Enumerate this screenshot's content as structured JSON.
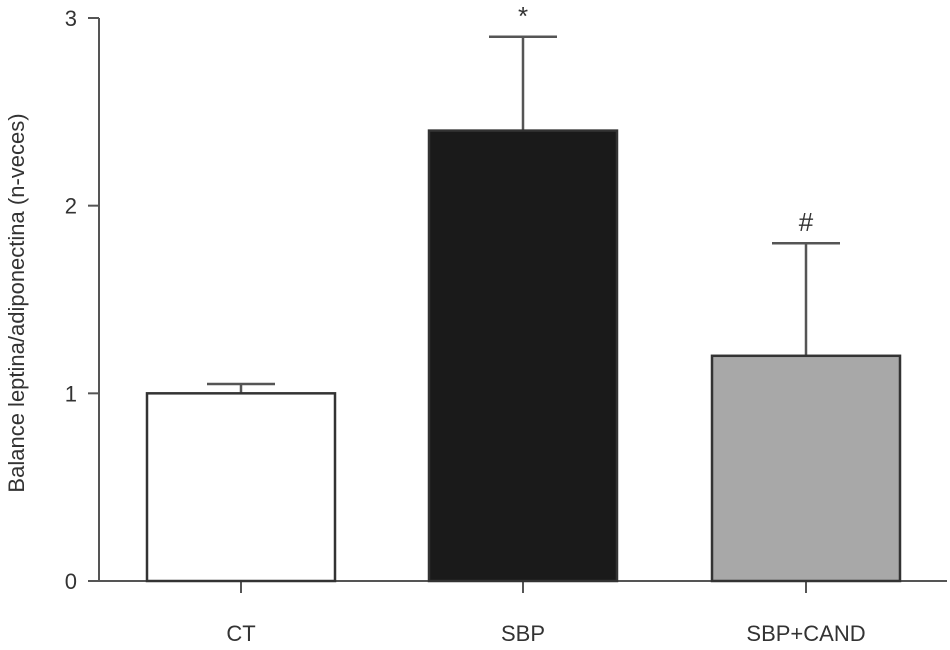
{
  "chart_data": {
    "type": "bar",
    "title": "",
    "xlabel": "",
    "ylabel": "Balance leptina/adiponectina (n-veces)",
    "ylim": [
      0,
      3
    ],
    "yticks": [
      "0",
      "1",
      "2",
      "3"
    ],
    "grid": false,
    "categories": [
      "CT",
      "SBP",
      "SBP+CAND"
    ],
    "values": [
      1.0,
      2.4,
      1.2
    ],
    "error_upper": [
      0.05,
      0.5,
      0.6
    ],
    "annotations": [
      "",
      "*",
      "#"
    ],
    "bar_colors": [
      "#ffffff",
      "#1a1a1a",
      "#a8a8a8"
    ],
    "axis_color": "#555555",
    "edge_color": "#333333"
  }
}
